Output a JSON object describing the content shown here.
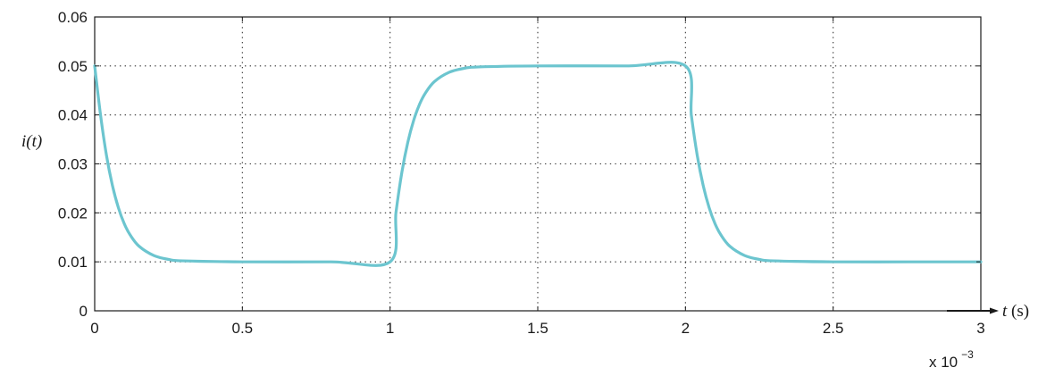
{
  "chart_data": {
    "type": "line",
    "title": "",
    "ylabel": "i(t)",
    "xlabel_var": "t",
    "xlabel_unit": " (s)",
    "x_multiplier_base": "x 10",
    "x_multiplier_exp": "−3",
    "xlim": [
      0,
      3
    ],
    "ylim": [
      0,
      0.06
    ],
    "x_ticks": [
      0,
      0.5,
      1,
      1.5,
      2,
      2.5,
      3
    ],
    "x_tick_labels": [
      "0",
      "0.5",
      "1",
      "1.5",
      "2",
      "2.5",
      "3"
    ],
    "y_ticks": [
      0,
      0.01,
      0.02,
      0.03,
      0.04,
      0.05,
      0.06
    ],
    "y_tick_labels": [
      "0",
      "0.01",
      "0.02",
      "0.03",
      "0.04",
      "0.05",
      "0.06"
    ],
    "grid": true,
    "line_color": "#6cc5cf",
    "series": [
      {
        "values_x": [
          0,
          0.02,
          0.04,
          0.06,
          0.08,
          0.1,
          0.12,
          0.15,
          0.2,
          0.25,
          0.3,
          0.5,
          0.8,
          1.0,
          1.02,
          1.04,
          1.06,
          1.08,
          1.1,
          1.12,
          1.15,
          1.2,
          1.25,
          1.3,
          1.5,
          1.8,
          2.0,
          2.02,
          2.04,
          2.06,
          2.08,
          2.1,
          2.12,
          2.15,
          2.2,
          2.25,
          2.3,
          2.5,
          2.8,
          3.0
        ],
        "values_y": [
          0.05,
          0.0399,
          0.0317,
          0.0256,
          0.0211,
          0.0178,
          0.0155,
          0.0132,
          0.0113,
          0.0105,
          0.0102,
          0.01,
          0.01,
          0.01,
          0.0201,
          0.0283,
          0.0344,
          0.0389,
          0.0422,
          0.0445,
          0.0468,
          0.0487,
          0.0495,
          0.0498,
          0.05,
          0.05,
          0.05,
          0.0399,
          0.0317,
          0.0256,
          0.0211,
          0.0178,
          0.0155,
          0.0132,
          0.0113,
          0.0105,
          0.0102,
          0.01,
          0.01,
          0.01
        ]
      }
    ]
  }
}
